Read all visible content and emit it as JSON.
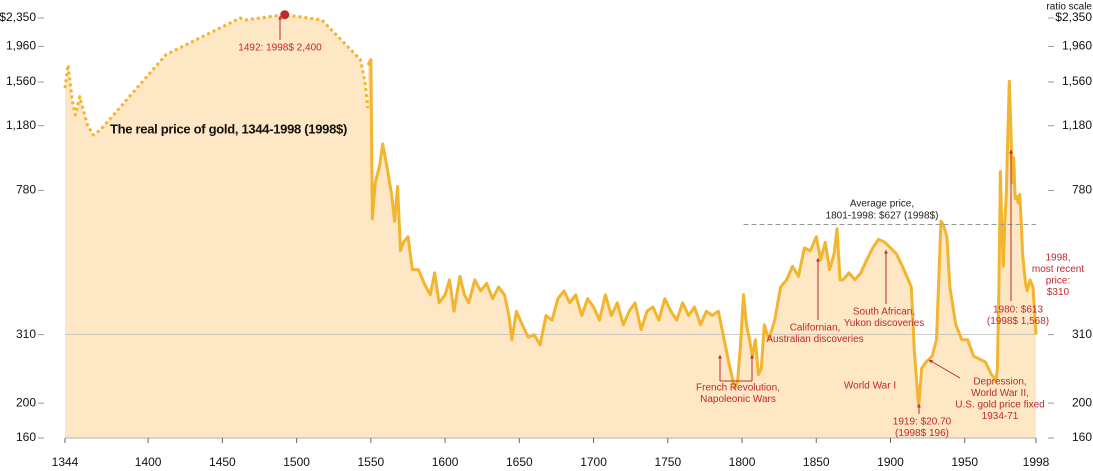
{
  "chart_data": {
    "type": "line",
    "title": "The real price of gold, 1344-1998 (1998$)",
    "scale_label": "ratio scale",
    "log_scale": true,
    "xlim": [
      1344,
      1998
    ],
    "ylim": [
      160,
      2350
    ],
    "xticks": [
      1344,
      1400,
      1450,
      1500,
      1550,
      1600,
      1650,
      1700,
      1750,
      1800,
      1850,
      1900,
      1950,
      1998
    ],
    "yticks": [
      160,
      200,
      310,
      780,
      {
        "value": 1180,
        "label": "1,180"
      },
      {
        "value": 1560,
        "label": "1,560"
      },
      {
        "value": 1960,
        "label": "1,960"
      },
      {
        "value": 2350,
        "label": "$2,350"
      }
    ],
    "line_color": "#f2b530",
    "area_color": "#fde7c4",
    "series": [
      {
        "dashed": true,
        "x": [
          1344,
          1346,
          1349,
          1351,
          1354,
          1359,
          1363,
          1368,
          1412,
          1462,
          1465,
          1492,
          1517,
          1543,
          1546,
          1548
        ],
        "values": [
          1500,
          1740,
          1380,
          1264,
          1420,
          1190,
          1112,
          1150,
          1860,
          2350,
          2320,
          2400,
          2320,
          1800,
          1570,
          1320
        ]
      },
      {
        "dashed": false,
        "x": [
          1548,
          1550,
          1551,
          1553,
          1556,
          1558,
          1561,
          1564,
          1566,
          1568,
          1570,
          1572,
          1575,
          1578,
          1582,
          1586,
          1590,
          1593,
          1596,
          1600,
          1603,
          1606,
          1610,
          1613,
          1616,
          1620,
          1624,
          1628,
          1632,
          1636,
          1640,
          1643,
          1645,
          1648,
          1652,
          1656,
          1660,
          1664,
          1668,
          1672,
          1676,
          1680,
          1684,
          1688,
          1692,
          1696,
          1700,
          1704,
          1708,
          1712,
          1716,
          1720,
          1724,
          1728,
          1732,
          1736,
          1740,
          1744,
          1748,
          1752,
          1756,
          1760,
          1764,
          1768,
          1772,
          1776,
          1780,
          1784,
          1788,
          1791,
          1793,
          1795,
          1797,
          1799,
          1801,
          1803,
          1805,
          1807,
          1809,
          1811,
          1813,
          1815,
          1818,
          1822,
          1826,
          1830,
          1834,
          1838,
          1842,
          1846,
          1850,
          1853,
          1856,
          1859,
          1862,
          1864,
          1866,
          1868,
          1872,
          1876,
          1880,
          1884,
          1888,
          1892,
          1896,
          1900,
          1904,
          1908,
          1912,
          1914,
          1916,
          1918,
          1919,
          1921,
          1924,
          1928,
          1931,
          1933,
          1934,
          1936,
          1938,
          1940,
          1944,
          1948,
          1952,
          1956,
          1960,
          1964,
          1968,
          1970,
          1971,
          1972,
          1973,
          1974,
          1975,
          1976,
          1977,
          1978,
          1979,
          1980,
          1981,
          1982,
          1983,
          1984,
          1985,
          1986,
          1987,
          1988,
          1989,
          1990,
          1991,
          1992,
          1994,
          1996,
          1998
        ],
        "values": [
          1740,
          1800,
          650,
          820,
          920,
          1050,
          900,
          760,
          640,
          800,
          530,
          560,
          580,
          470,
          470,
          430,
          400,
          460,
          380,
          400,
          440,
          360,
          450,
          400,
          380,
          440,
          410,
          430,
          390,
          420,
          400,
          350,
          300,
          360,
          330,
          305,
          310,
          290,
          350,
          340,
          390,
          410,
          380,
          400,
          350,
          390,
          370,
          340,
          400,
          350,
          380,
          330,
          360,
          380,
          320,
          360,
          370,
          340,
          390,
          360,
          340,
          380,
          350,
          370,
          330,
          360,
          350,
          360,
          300,
          260,
          240,
          220,
          230,
          290,
          400,
          330,
          300,
          270,
          300,
          240,
          250,
          330,
          300,
          340,
          420,
          440,
          480,
          450,
          540,
          530,
          580,
          500,
          560,
          470,
          520,
          610,
          440,
          440,
          460,
          440,
          460,
          500,
          540,
          570,
          560,
          540,
          520,
          480,
          440,
          420,
          280,
          220,
          196,
          250,
          260,
          270,
          300,
          500,
          640,
          620,
          580,
          420,
          330,
          300,
          300,
          270,
          265,
          260,
          240,
          235,
          230,
          250,
          420,
          880,
          600,
          480,
          640,
          760,
          1100,
          1568,
          1180,
          820,
          960,
          740,
          750,
          720,
          760,
          640,
          520,
          470,
          430,
          410,
          440,
          420,
          310
        ]
      }
    ],
    "highlight": {
      "x": 1492,
      "value": 2400,
      "color": "#c0282e"
    },
    "average": {
      "value": 627,
      "x": [
        1801,
        1998
      ],
      "lines": [
        "Average price,",
        "1801-1998: $627 (1998$)"
      ]
    },
    "annotations": [
      {
        "lines": [
          "1492: 1998$ 2,400"
        ]
      },
      {
        "lines": [
          "French Revolution,",
          "Napoleonic Wars"
        ]
      },
      {
        "lines": [
          "Californian,",
          "Australian discoveries"
        ]
      },
      {
        "lines": [
          "South African,",
          "Yukon discoveries"
        ]
      },
      {
        "lines": [
          "World War I"
        ]
      },
      {
        "lines": [
          "1919: $20.70",
          "(1998$ 196)"
        ]
      },
      {
        "lines": [
          "Depression,",
          "World War II,",
          "U.S. gold price fixed",
          "1934-71"
        ]
      },
      {
        "lines": [
          "1980: $613",
          "(1998$ 1,568)"
        ]
      },
      {
        "lines": [
          "1998,",
          "most recent",
          "price:",
          "$310"
        ]
      }
    ]
  }
}
